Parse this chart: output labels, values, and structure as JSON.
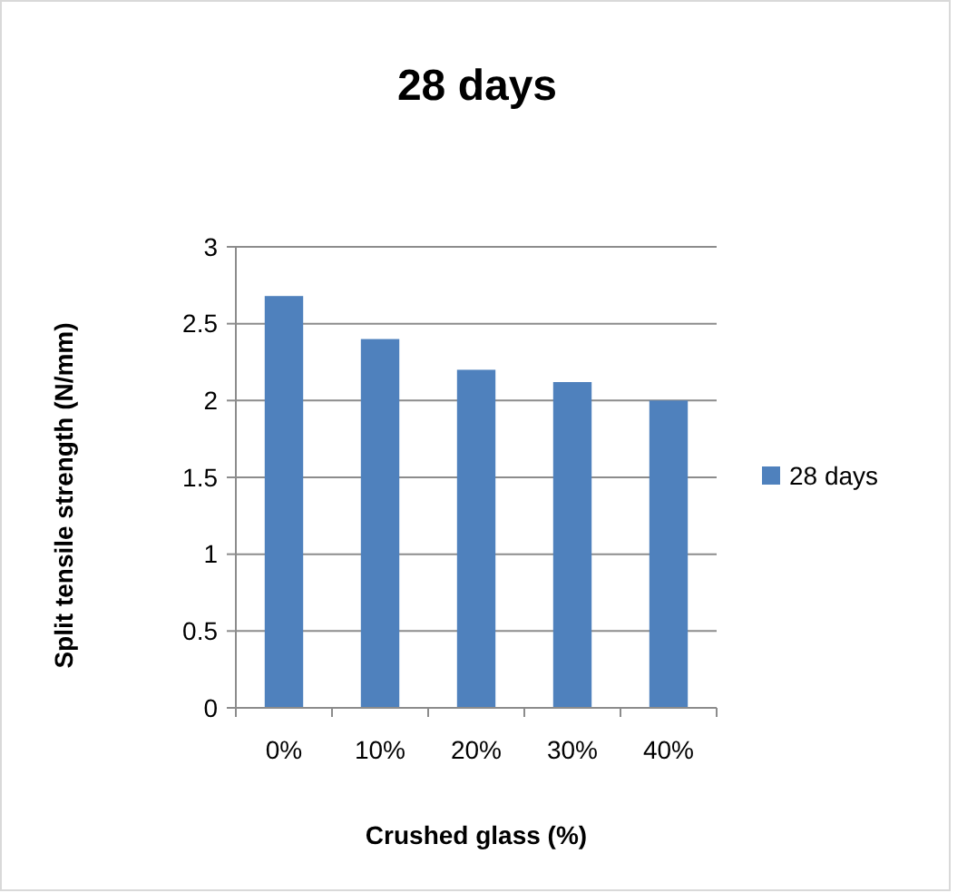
{
  "chart_data": {
    "type": "bar",
    "title": "28 days",
    "xlabel": "Crushed glass (%)",
    "ylabel": "Split tensile strength (N/mm)",
    "categories": [
      "0%",
      "10%",
      "20%",
      "30%",
      "40%"
    ],
    "series": [
      {
        "name": "28 days",
        "color": "#4f81bd",
        "values": [
          2.68,
          2.4,
          2.2,
          2.12,
          2.0
        ]
      }
    ],
    "ylim": [
      0,
      3
    ],
    "yticks": [
      0,
      0.5,
      1,
      1.5,
      2,
      2.5,
      3
    ],
    "grid": "y",
    "legend": "right"
  }
}
